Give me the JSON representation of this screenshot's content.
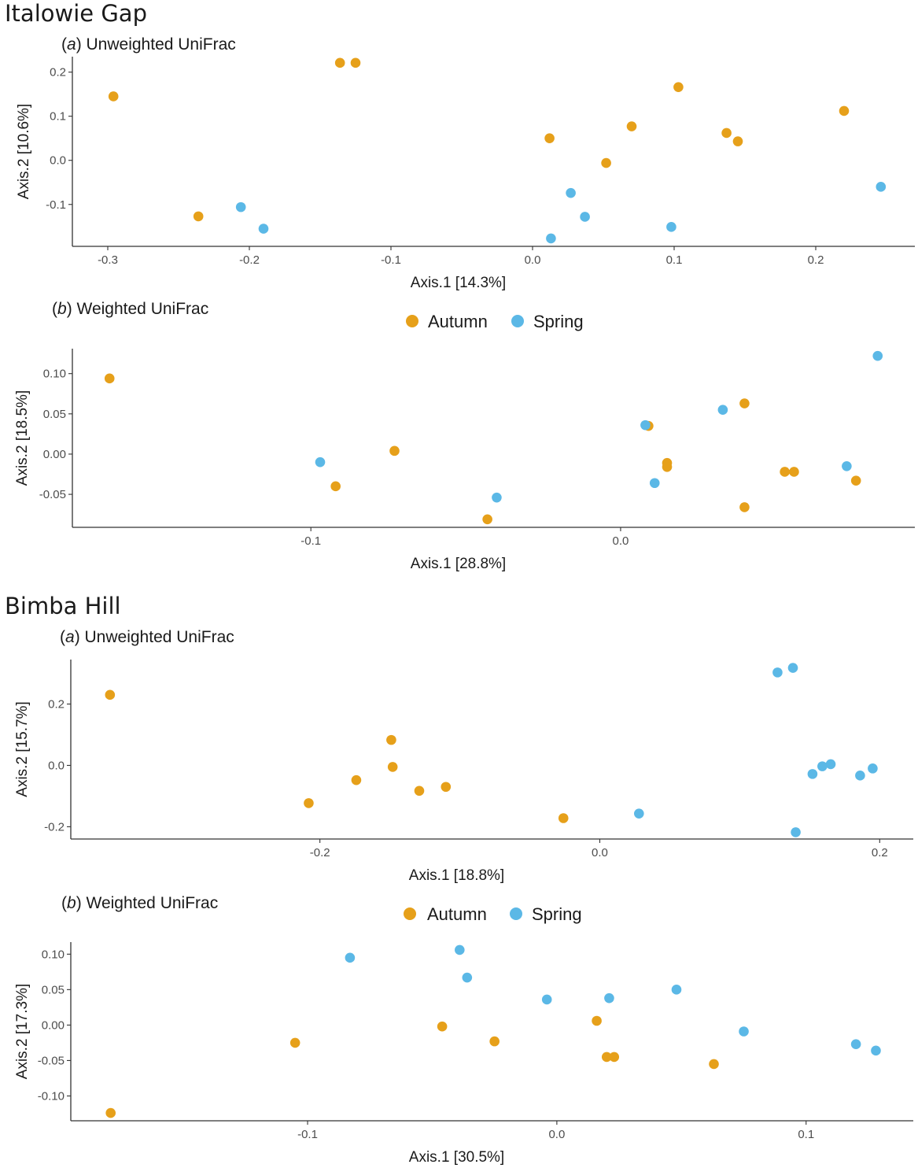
{
  "colors": {
    "Autumn": "#E6A01A",
    "Spring": "#5BB8E6",
    "axis": "#333333"
  },
  "sites": [
    {
      "title": "Italowie Gap"
    },
    {
      "title": "Bimba Hill"
    }
  ],
  "legend": [
    "Autumn",
    "Spring"
  ],
  "chart_data": [
    {
      "type": "scatter",
      "site": "Italowie Gap",
      "panel_letter": "a",
      "title": "Unweighted UniFrac",
      "xlabel": "Axis.1   [14.3%]",
      "ylabel": "Axis.2   [10.6%]",
      "xlim": [
        -0.325,
        0.27
      ],
      "ylim": [
        -0.195,
        0.235
      ],
      "xticks": [
        -0.3,
        -0.2,
        -0.1,
        0.0,
        0.1,
        0.2
      ],
      "xtick_labels": [
        "-0.3",
        "-0.2",
        "-0.1",
        "0.0",
        "0.1",
        "0.2"
      ],
      "yticks": [
        -0.1,
        0.0,
        0.1,
        0.2
      ],
      "ytick_labels": [
        "-0.1",
        "0.0",
        "0.1",
        "0.2"
      ],
      "series": [
        {
          "name": "Autumn",
          "points": [
            [
              -0.296,
              0.145
            ],
            [
              -0.236,
              -0.127
            ],
            [
              -0.136,
              0.221
            ],
            [
              -0.125,
              0.221
            ],
            [
              0.012,
              0.05
            ],
            [
              0.052,
              -0.006
            ],
            [
              0.07,
              0.077
            ],
            [
              0.103,
              0.166
            ],
            [
              0.137,
              0.062
            ],
            [
              0.145,
              0.043
            ],
            [
              0.22,
              0.112
            ]
          ]
        },
        {
          "name": "Spring",
          "points": [
            [
              -0.206,
              -0.106
            ],
            [
              -0.19,
              -0.155
            ],
            [
              0.013,
              -0.177
            ],
            [
              0.027,
              -0.074
            ],
            [
              0.037,
              -0.128
            ],
            [
              0.098,
              -0.151
            ],
            [
              0.246,
              -0.06
            ]
          ]
        }
      ]
    },
    {
      "type": "scatter",
      "site": "Italowie Gap",
      "panel_letter": "b",
      "title": "Weighted UniFrac",
      "xlabel": "Axis.1   [28.8%]",
      "ylabel": "Axis.2   [18.5%]",
      "xlim": [
        -0.177,
        0.095
      ],
      "ylim": [
        -0.091,
        0.131
      ],
      "xticks": [
        -0.1,
        0.0
      ],
      "xtick_labels": [
        "-0.1",
        "0.0"
      ],
      "yticks": [
        -0.05,
        0.0,
        0.05,
        0.1
      ],
      "ytick_labels": [
        "-0.05",
        "0.00",
        "0.05",
        "0.10"
      ],
      "series": [
        {
          "name": "Autumn",
          "points": [
            [
              -0.165,
              0.094
            ],
            [
              -0.092,
              -0.04
            ],
            [
              -0.073,
              0.004
            ],
            [
              -0.043,
              -0.081
            ],
            [
              0.009,
              0.035
            ],
            [
              0.015,
              -0.016
            ],
            [
              0.015,
              -0.011
            ],
            [
              0.04,
              0.063
            ],
            [
              0.04,
              -0.066
            ],
            [
              0.053,
              -0.022
            ],
            [
              0.056,
              -0.022
            ],
            [
              0.076,
              -0.033
            ]
          ]
        },
        {
          "name": "Spring",
          "points": [
            [
              -0.097,
              -0.01
            ],
            [
              -0.04,
              -0.054
            ],
            [
              0.008,
              0.036
            ],
            [
              0.011,
              -0.036
            ],
            [
              0.033,
              0.055
            ],
            [
              0.073,
              -0.015
            ],
            [
              0.083,
              0.122
            ]
          ]
        }
      ]
    },
    {
      "type": "scatter",
      "site": "Bimba Hill",
      "panel_letter": "a",
      "title": "Unweighted UniFrac",
      "xlabel": "Axis.1   [18.8%]",
      "ylabel": "Axis.2   [15.7%]",
      "xlim": [
        -0.378,
        0.224
      ],
      "ylim": [
        -0.24,
        0.345
      ],
      "xticks": [
        -0.2,
        0.0,
        0.2
      ],
      "xtick_labels": [
        "-0.2",
        "0.0",
        "0.2"
      ],
      "yticks": [
        -0.2,
        0.0,
        0.2
      ],
      "ytick_labels": [
        "-0.2",
        "0.0",
        "0.2"
      ],
      "series": [
        {
          "name": "Autumn",
          "points": [
            [
              -0.35,
              0.23
            ],
            [
              -0.208,
              -0.123
            ],
            [
              -0.174,
              -0.048
            ],
            [
              -0.149,
              0.083
            ],
            [
              -0.148,
              -0.005
            ],
            [
              -0.129,
              -0.083
            ],
            [
              -0.11,
              -0.07
            ],
            [
              -0.026,
              -0.172
            ]
          ]
        },
        {
          "name": "Spring",
          "points": [
            [
              0.028,
              -0.157
            ],
            [
              0.127,
              0.303
            ],
            [
              0.138,
              0.318
            ],
            [
              0.14,
              -0.218
            ],
            [
              0.152,
              -0.028
            ],
            [
              0.159,
              -0.003
            ],
            [
              0.165,
              0.004
            ],
            [
              0.186,
              -0.033
            ],
            [
              0.195,
              -0.01
            ]
          ]
        }
      ]
    },
    {
      "type": "scatter",
      "site": "Bimba Hill",
      "panel_letter": "b",
      "title": "Weighted UniFrac",
      "xlabel": "Axis.1   [30.5%]",
      "ylabel": "Axis.2   [17.3%]",
      "xlim": [
        -0.195,
        0.143
      ],
      "ylim": [
        -0.135,
        0.117
      ],
      "xticks": [
        -0.1,
        0.0,
        0.1
      ],
      "xtick_labels": [
        "-0.1",
        "0.0",
        "0.1"
      ],
      "yticks": [
        -0.1,
        -0.05,
        0.0,
        0.05,
        0.1
      ],
      "ytick_labels": [
        "-0.10",
        "-0.05",
        "0.00",
        "0.05",
        "0.10"
      ],
      "series": [
        {
          "name": "Autumn",
          "points": [
            [
              -0.179,
              -0.124
            ],
            [
              -0.105,
              -0.025
            ],
            [
              -0.046,
              -0.002
            ],
            [
              -0.025,
              -0.023
            ],
            [
              0.016,
              0.006
            ],
            [
              0.02,
              -0.045
            ],
            [
              0.023,
              -0.045
            ],
            [
              0.063,
              -0.055
            ]
          ]
        },
        {
          "name": "Spring",
          "points": [
            [
              -0.083,
              0.095
            ],
            [
              -0.039,
              0.106
            ],
            [
              -0.036,
              0.067
            ],
            [
              -0.004,
              0.036
            ],
            [
              0.021,
              0.038
            ],
            [
              0.048,
              0.05
            ],
            [
              0.075,
              -0.009
            ],
            [
              0.12,
              -0.027
            ],
            [
              0.128,
              -0.036
            ]
          ]
        }
      ]
    }
  ]
}
